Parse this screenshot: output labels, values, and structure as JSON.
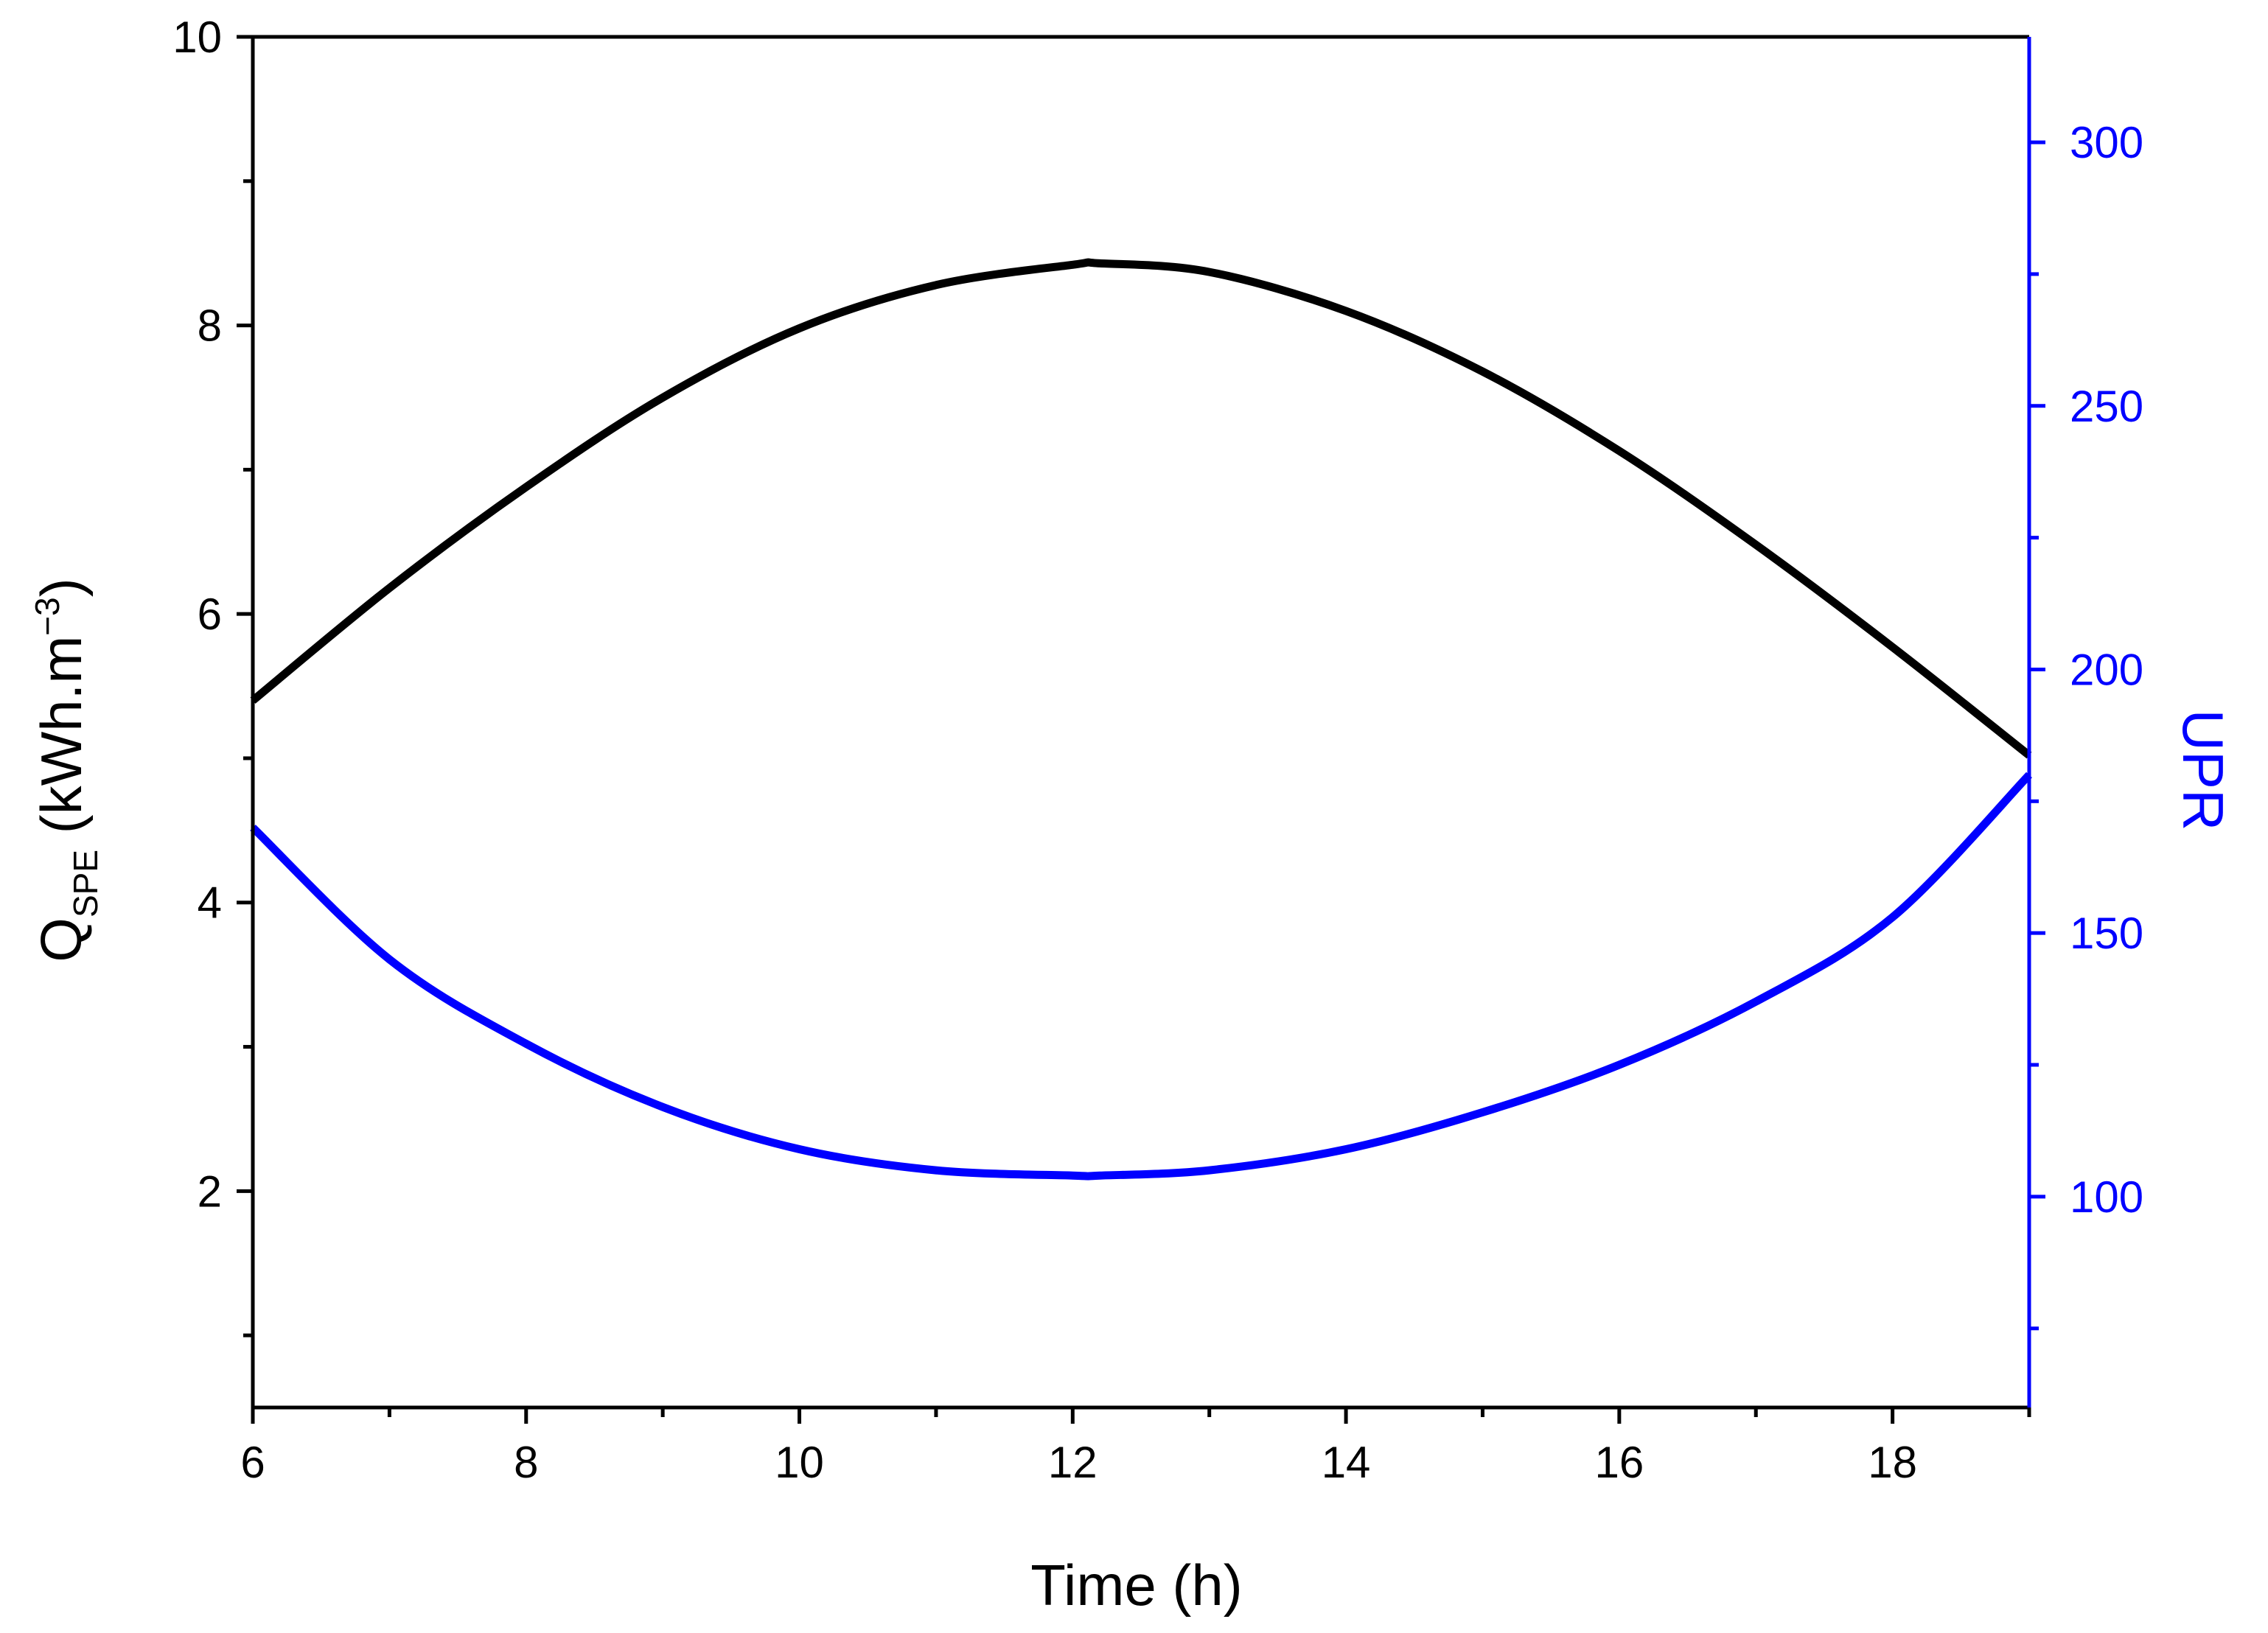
{
  "chart_data": {
    "type": "line",
    "x_axis": {
      "label": "Time (h)",
      "range": [
        6,
        19
      ],
      "major_ticks": [
        6,
        8,
        10,
        12,
        14,
        16,
        18
      ],
      "minor_ticks": [
        7,
        9,
        11,
        13,
        15,
        17,
        19
      ],
      "tick_labels": [
        "6",
        "8",
        "10",
        "12",
        "14",
        "16",
        "18"
      ]
    },
    "y_axis_left": {
      "label_main": "Q",
      "label_sub": "SPE",
      "label_rest": " (kWh.m",
      "label_sup": "−3",
      "label_close": ")",
      "range": [
        0.5,
        10
      ],
      "major_ticks": [
        2,
        4,
        6,
        8,
        10
      ],
      "minor_ticks": [
        1,
        3,
        5,
        7,
        9
      ],
      "tick_labels": [
        "2",
        "4",
        "6",
        "8",
        "10"
      ],
      "color": "#000000"
    },
    "y_axis_right": {
      "label": "UPR",
      "range": [
        60,
        320
      ],
      "major_ticks": [
        100,
        150,
        200,
        250,
        300
      ],
      "minor_ticks": [
        75,
        125,
        175,
        225,
        275
      ],
      "tick_labels": [
        "100",
        "150",
        "200",
        "250",
        "300"
      ],
      "color": "#0000ff"
    },
    "series": [
      {
        "axis": "left",
        "color": "#000000",
        "x": [
          6,
          7,
          8,
          9,
          10,
          11,
          12,
          12.2,
          13,
          14,
          15,
          16,
          17,
          18,
          19
        ],
        "y": [
          5.4,
          6.18,
          6.88,
          7.5,
          7.98,
          8.28,
          8.42,
          8.43,
          8.37,
          8.1,
          7.68,
          7.13,
          6.48,
          5.77,
          5.02
        ]
      },
      {
        "axis": "right",
        "color": "#0000ff",
        "x": [
          6,
          7,
          8,
          9,
          10,
          11,
          12,
          12.2,
          13,
          14,
          15,
          16,
          17,
          18,
          19
        ],
        "y": [
          170,
          145,
          129,
          117,
          109,
          105,
          104,
          104,
          105,
          109,
          116,
          125,
          137,
          153,
          180
        ]
      }
    ],
    "grid": false,
    "legend": "none"
  }
}
